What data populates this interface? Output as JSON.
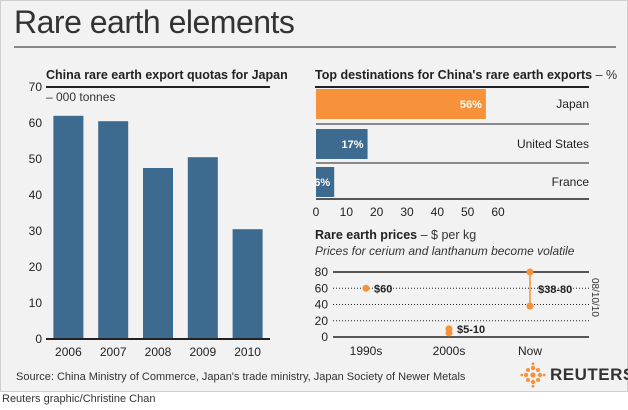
{
  "page": {
    "title": "Rare earth elements",
    "source": "Source: China Ministry of Commerce, Japan's trade ministry, Japan Society of Newer Metals",
    "credit": "Reuters graphic/Christine Chan",
    "date": "08/10/10",
    "logo_text": "REUTERS"
  },
  "colors": {
    "bar": "#3d6a8f",
    "highlight": "#f7923a",
    "axis": "#222222"
  },
  "chart_data": [
    {
      "type": "bar",
      "title": "China rare earth export quotas for Japan",
      "subtitle": "– 000 tonnes",
      "categories": [
        "2006",
        "2007",
        "2008",
        "2009",
        "2010"
      ],
      "values": [
        62,
        60.5,
        47.5,
        50.5,
        30.5
      ],
      "ylim": [
        0,
        70
      ],
      "yticks": [
        0,
        10,
        20,
        30,
        40,
        50,
        60,
        70
      ],
      "grid": false
    },
    {
      "type": "bar",
      "orientation": "horizontal",
      "title": "Top destinations for China's rare earth exports",
      "unit": "– %",
      "categories": [
        "Japan",
        "United States",
        "France"
      ],
      "values": [
        56,
        17,
        6
      ],
      "value_labels": [
        "56%",
        "17%",
        "6%"
      ],
      "xlim": [
        0,
        60
      ],
      "xticks": [
        0,
        10,
        20,
        30,
        40,
        50,
        60
      ],
      "highlight": "Japan"
    },
    {
      "type": "scatter",
      "title": "Rare earth prices",
      "unit": "– $ per kg",
      "subtitle": "Prices for cerium and lanthanum become volatile",
      "categories": [
        "1990s",
        "2000s",
        "Now"
      ],
      "points": [
        {
          "x": "1990s",
          "low": 60,
          "high": 60,
          "label": "$60"
        },
        {
          "x": "2000s",
          "low": 5,
          "high": 10,
          "label": "$5-10"
        },
        {
          "x": "Now",
          "low": 38,
          "high": 80,
          "label": "$38-80"
        }
      ],
      "ylim": [
        0,
        80
      ],
      "yticks": [
        0,
        20,
        40,
        60,
        80
      ],
      "grid": true
    }
  ]
}
